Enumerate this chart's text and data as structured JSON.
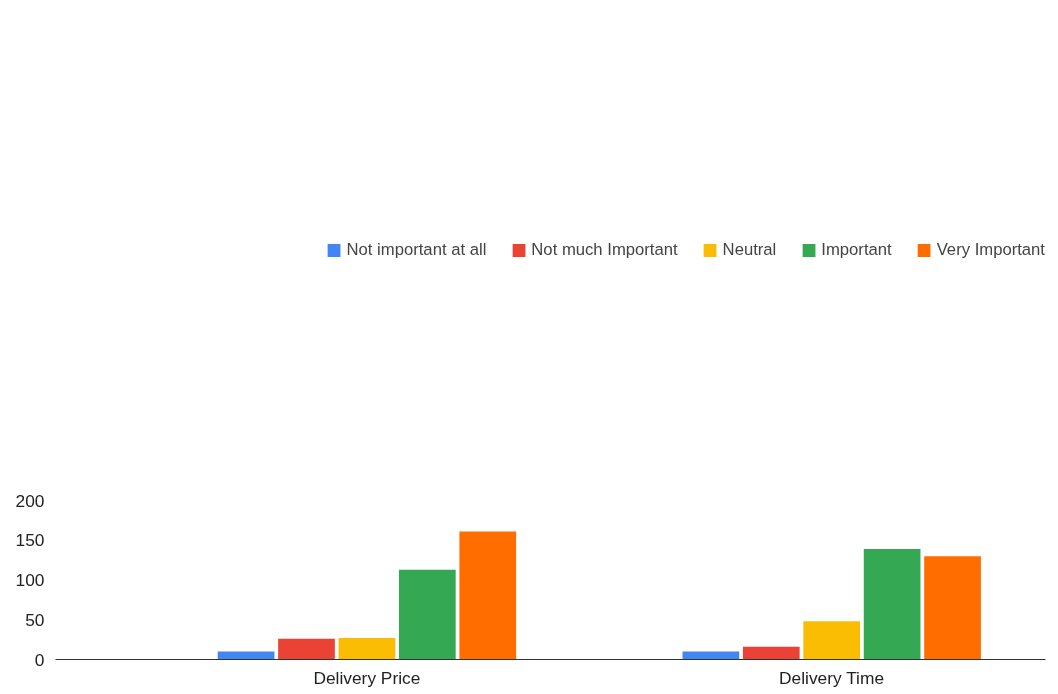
{
  "chart_data": {
    "type": "bar",
    "categories": [
      "Delivery Price",
      "Delivery Time"
    ],
    "series": [
      {
        "name": "Not important at all",
        "color": "#4285f4",
        "values": [
          10,
          10
        ]
      },
      {
        "name": "Not much Important",
        "color": "#ea4335",
        "values": [
          26,
          16
        ]
      },
      {
        "name": "Neutral",
        "color": "#fbbc04",
        "values": [
          27,
          48
        ]
      },
      {
        "name": "Important",
        "color": "#34a853",
        "values": [
          113,
          139
        ]
      },
      {
        "name": "Very Important",
        "color": "#ff6d01",
        "values": [
          161,
          130
        ]
      }
    ],
    "ylim": [
      0,
      200
    ],
    "yticks": [
      0,
      50,
      100,
      150,
      200
    ],
    "grid": false,
    "legend": "top"
  }
}
